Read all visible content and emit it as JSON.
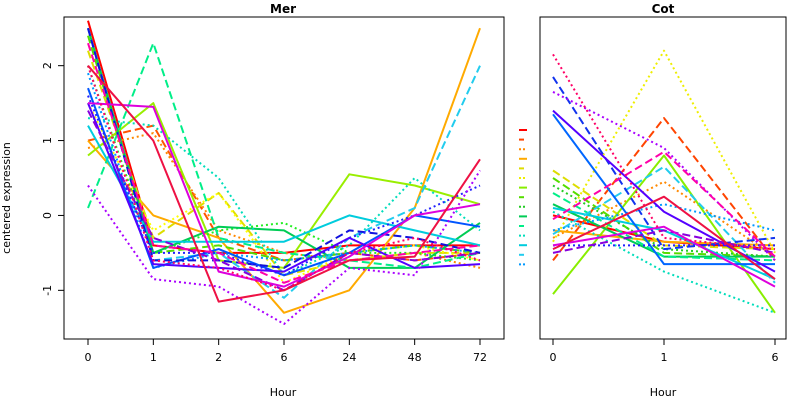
{
  "chart_data": [
    {
      "type": "line",
      "title": "Mer",
      "xlabel": "Hour",
      "ylabel": "centered expression",
      "categories": [
        "0",
        "1",
        "2",
        "6",
        "24",
        "48",
        "72"
      ],
      "yticks": [
        "-1",
        "0",
        "1",
        "2"
      ],
      "ylim": [
        -1.65,
        2.65
      ],
      "grid": false,
      "series": [
        {
          "color": "#FF0000",
          "dash": "solid",
          "values": [
            2.6,
            -0.4,
            -0.5,
            -0.5,
            -0.4,
            -0.4,
            -0.4
          ]
        },
        {
          "color": "#FF5500",
          "dash": "dashed",
          "values": [
            1.0,
            1.2,
            -0.3,
            -0.6,
            -0.5,
            -0.6,
            -0.5
          ]
        },
        {
          "color": "#FF8800",
          "dash": "dotted",
          "values": [
            0.9,
            1.1,
            -0.2,
            -0.5,
            -0.6,
            -0.5,
            -0.7
          ]
        },
        {
          "color": "#FFAA00",
          "dash": "solid",
          "values": [
            1.0,
            0.0,
            -0.3,
            -1.3,
            -1.0,
            0.1,
            2.5
          ]
        },
        {
          "color": "#DDDD00",
          "dash": "dashed",
          "values": [
            2.2,
            -0.3,
            0.3,
            -0.8,
            -0.6,
            -0.5,
            -0.5
          ]
        },
        {
          "color": "#FFFF00",
          "dash": "dotted",
          "values": [
            1.5,
            -0.2,
            0.3,
            -0.9,
            -0.5,
            -0.4,
            -0.6
          ]
        },
        {
          "color": "#99EE00",
          "dash": "solid",
          "values": [
            0.8,
            1.5,
            -0.6,
            -0.7,
            0.55,
            0.4,
            0.15
          ]
        },
        {
          "color": "#55DD00",
          "dash": "dashed",
          "values": [
            2.4,
            -0.5,
            -0.4,
            -0.6,
            -0.5,
            -0.4,
            -0.5
          ]
        },
        {
          "color": "#22EE22",
          "dash": "dotted",
          "values": [
            2.0,
            -0.5,
            -0.2,
            -0.1,
            -0.5,
            -0.5,
            -0.6
          ]
        },
        {
          "color": "#00CC55",
          "dash": "solid",
          "values": [
            2.5,
            -0.5,
            -0.15,
            -0.2,
            -0.7,
            -0.7,
            -0.1
          ]
        },
        {
          "color": "#00EE88",
          "dash": "dashed",
          "values": [
            0.1,
            2.3,
            -0.3,
            -0.5,
            -0.6,
            -0.7,
            -0.5
          ]
        },
        {
          "color": "#00DDBB",
          "dash": "dotted",
          "values": [
            1.3,
            1.2,
            0.5,
            -0.8,
            -0.4,
            0.5,
            -0.2
          ]
        },
        {
          "color": "#00CCDD",
          "dash": "solid",
          "values": [
            1.2,
            -0.35,
            -0.35,
            -0.35,
            0.0,
            -0.2,
            -0.4
          ]
        },
        {
          "color": "#22CCEE",
          "dash": "dashed",
          "values": [
            2.5,
            -0.6,
            -0.5,
            -1.1,
            -0.3,
            0.1,
            2.0
          ]
        },
        {
          "color": "#0099FF",
          "dash": "dotted",
          "values": [
            1.9,
            -0.7,
            -0.5,
            -0.6,
            -0.5,
            -0.4,
            -0.5
          ]
        },
        {
          "color": "#0055FF",
          "dash": "solid",
          "values": [
            1.7,
            -0.7,
            -0.45,
            -0.8,
            -0.5,
            0.0,
            -0.15
          ]
        },
        {
          "color": "#1111DD",
          "dash": "dashed",
          "values": [
            2.5,
            -0.6,
            -0.6,
            -0.7,
            -0.2,
            -0.3,
            -0.5
          ]
        },
        {
          "color": "#2222FF",
          "dash": "dotted",
          "values": [
            1.6,
            -0.5,
            -0.5,
            -0.8,
            -0.3,
            0.0,
            0.4
          ]
        },
        {
          "color": "#5500FF",
          "dash": "solid",
          "values": [
            1.5,
            -0.65,
            -0.7,
            -0.75,
            -0.3,
            -0.7,
            -0.65
          ]
        },
        {
          "color": "#8800DD",
          "dash": "dashed",
          "values": [
            1.4,
            -0.3,
            -0.6,
            -1.0,
            -0.5,
            -0.6,
            -0.5
          ]
        },
        {
          "color": "#AA00FF",
          "dash": "dotted",
          "values": [
            0.4,
            -0.85,
            -0.95,
            -1.45,
            -0.7,
            -0.8,
            0.6
          ]
        },
        {
          "color": "#DD00DD",
          "dash": "solid",
          "values": [
            1.5,
            1.45,
            -0.75,
            -0.95,
            -0.55,
            0.0,
            0.15
          ]
        },
        {
          "color": "#FF00AA",
          "dash": "dashed",
          "values": [
            2.3,
            -0.4,
            -0.5,
            -0.9,
            -0.6,
            -0.5,
            -0.4
          ]
        },
        {
          "color": "#FF0066",
          "dash": "dotted",
          "values": [
            2.0,
            -0.6,
            -0.7,
            -1.0,
            -0.5,
            -0.3,
            -0.6
          ]
        },
        {
          "color": "#EE1144",
          "dash": "solid",
          "values": [
            2.0,
            1.0,
            -1.15,
            -1.0,
            -0.6,
            -0.55,
            0.75
          ]
        }
      ]
    },
    {
      "type": "line",
      "title": "Cot",
      "xlabel": "Hour",
      "ylabel": "",
      "categories": [
        "0",
        "1",
        "6"
      ],
      "ylim": [
        -1.65,
        2.65
      ],
      "grid": false,
      "series": [
        {
          "color": "#FF0000",
          "dash": "solid",
          "values": [
            0.0,
            -0.35,
            -0.45
          ]
        },
        {
          "color": "#FF4400",
          "dash": "dashed",
          "values": [
            -0.6,
            1.3,
            -0.6
          ]
        },
        {
          "color": "#FF8800",
          "dash": "dotted",
          "values": [
            -0.3,
            0.45,
            -0.55
          ]
        },
        {
          "color": "#FFAA00",
          "dash": "solid",
          "values": [
            -0.2,
            -0.35,
            -0.4
          ]
        },
        {
          "color": "#DDDD00",
          "dash": "dashed",
          "values": [
            0.6,
            -0.4,
            -0.45
          ]
        },
        {
          "color": "#EEEE00",
          "dash": "dotted",
          "values": [
            -0.35,
            2.2,
            -0.5
          ]
        },
        {
          "color": "#88EE00",
          "dash": "solid",
          "values": [
            -1.05,
            0.8,
            -1.3
          ]
        },
        {
          "color": "#55DD00",
          "dash": "dashed",
          "values": [
            0.5,
            -0.5,
            -0.55
          ]
        },
        {
          "color": "#22CC22",
          "dash": "dotted",
          "values": [
            0.4,
            -0.45,
            -0.55
          ]
        },
        {
          "color": "#00CC55",
          "dash": "solid",
          "values": [
            0.15,
            -0.55,
            -0.55
          ]
        },
        {
          "color": "#00EE88",
          "dash": "dashed",
          "values": [
            0.3,
            -0.55,
            -0.6
          ]
        },
        {
          "color": "#00DDBB",
          "dash": "dotted",
          "values": [
            0.05,
            -0.75,
            -1.3
          ]
        },
        {
          "color": "#00CCDD",
          "dash": "solid",
          "values": [
            0.1,
            -0.2,
            -0.85
          ]
        },
        {
          "color": "#22CCEE",
          "dash": "dashed",
          "values": [
            -0.25,
            0.65,
            -0.9
          ]
        },
        {
          "color": "#0099FF",
          "dash": "dotted",
          "values": [
            -0.2,
            0.15,
            -0.2
          ]
        },
        {
          "color": "#0066FF",
          "dash": "solid",
          "values": [
            1.35,
            -0.65,
            -0.65
          ]
        },
        {
          "color": "#1133EE",
          "dash": "dashed",
          "values": [
            1.85,
            -0.45,
            -0.3
          ]
        },
        {
          "color": "#2222FF",
          "dash": "dotted",
          "values": [
            -0.4,
            -0.4,
            -0.4
          ]
        },
        {
          "color": "#5500FF",
          "dash": "solid",
          "values": [
            1.4,
            0.05,
            -0.75
          ]
        },
        {
          "color": "#8800DD",
          "dash": "dashed",
          "values": [
            -0.5,
            -0.2,
            -0.5
          ]
        },
        {
          "color": "#AA00FF",
          "dash": "dotted",
          "values": [
            1.65,
            0.9,
            -0.6
          ]
        },
        {
          "color": "#DD00DD",
          "dash": "solid",
          "values": [
            -0.4,
            -0.15,
            -0.95
          ]
        },
        {
          "color": "#FF00AA",
          "dash": "dashed",
          "values": [
            -0.05,
            0.85,
            -0.55
          ]
        },
        {
          "color": "#FF0066",
          "dash": "dotted",
          "values": [
            2.15,
            -0.3,
            -0.45
          ]
        },
        {
          "color": "#EE1144",
          "dash": "solid",
          "values": [
            -0.45,
            0.25,
            -0.85
          ]
        }
      ]
    }
  ],
  "legend": {
    "placement": "between-panels",
    "entries": [
      {
        "color": "#FF0000",
        "dash": "solid"
      },
      {
        "color": "#FF4400",
        "dash": "dashed"
      },
      {
        "color": "#FF8800",
        "dash": "dotted"
      },
      {
        "color": "#FFAA00",
        "dash": "solid"
      },
      {
        "color": "#DDDD00",
        "dash": "dashed"
      },
      {
        "color": "#EEEE00",
        "dash": "dotted"
      },
      {
        "color": "#88EE00",
        "dash": "solid"
      },
      {
        "color": "#55DD00",
        "dash": "dashed"
      },
      {
        "color": "#22CC22",
        "dash": "dotted"
      },
      {
        "color": "#00CC55",
        "dash": "solid"
      },
      {
        "color": "#00EE88",
        "dash": "dashed"
      },
      {
        "color": "#00DDBB",
        "dash": "dotted"
      },
      {
        "color": "#00CCDD",
        "dash": "solid"
      },
      {
        "color": "#22CCEE",
        "dash": "dashed"
      },
      {
        "color": "#0099FF",
        "dash": "dotted"
      }
    ]
  }
}
